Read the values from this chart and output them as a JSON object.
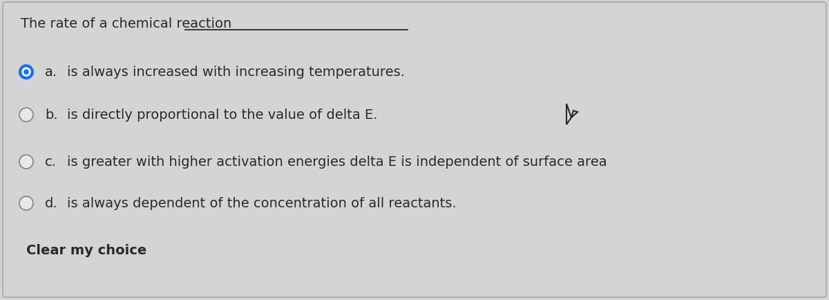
{
  "background_color": "#d4d4d4",
  "border_color": "#b0b0b0",
  "title_text": "The rate of a chemical reaction",
  "options": [
    {
      "label": "a.",
      "text": "is always increased with increasing temperatures.",
      "selected": true
    },
    {
      "label": "b.",
      "text": "is directly proportional to the value of delta E.",
      "selected": false
    },
    {
      "label": "c.",
      "text": "is greater with higher activation energies delta E is independent of surface area",
      "selected": false
    },
    {
      "label": "d.",
      "text": "is always dependent of the concentration of all reactants.",
      "selected": false
    }
  ],
  "clear_text": "Clear my choice",
  "selected_outer_color": "#1a73e8",
  "selected_inner_color": "#1a73e8",
  "unselected_face": "#e8e8e8",
  "unselected_border": "#888888",
  "text_color": "#2a2a2a",
  "title_fontsize": 14,
  "option_fontsize": 14,
  "clear_fontsize": 14
}
